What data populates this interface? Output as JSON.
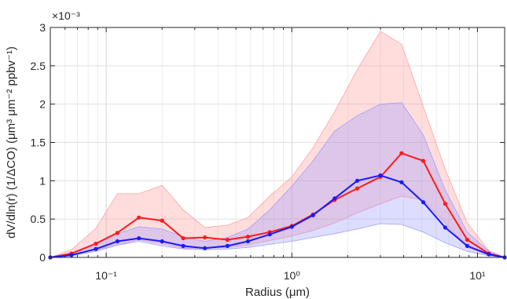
{
  "chart_data": {
    "type": "line",
    "xlabel": "Radius (μm)",
    "ylabel": "dV/dln(r) (1/ΔCO) (μm³ μm⁻² ppbv⁻¹)",
    "exponent_label": "×10⁻³",
    "x_scale": "log",
    "xlim": [
      0.05,
      14
    ],
    "ylim": [
      0,
      0.003
    ],
    "grid": true,
    "x_ticks": [
      {
        "value": 0.1,
        "label": "10⁻¹"
      },
      {
        "value": 1,
        "label": "10⁰"
      },
      {
        "value": 10,
        "label": "10¹"
      }
    ],
    "y_ticks": [
      {
        "value": 0,
        "label": "0"
      },
      {
        "value": 0.0005,
        "label": "0.5"
      },
      {
        "value": 0.001,
        "label": "1"
      },
      {
        "value": 0.0015,
        "label": "1.5"
      },
      {
        "value": 0.002,
        "label": "2"
      },
      {
        "value": 0.0025,
        "label": "2.5"
      },
      {
        "value": 0.003,
        "label": "3"
      }
    ],
    "x": [
      0.05,
      0.065,
      0.088,
      0.115,
      0.15,
      0.2,
      0.26,
      0.34,
      0.45,
      0.58,
      0.76,
      1.0,
      1.3,
      1.7,
      2.25,
      3.0,
      3.9,
      5.1,
      6.7,
      8.8,
      11.5,
      14.0
    ],
    "series": [
      {
        "color": "#ff1a1a",
        "band_color": "#ff9999",
        "values": [
          0.0,
          5e-05,
          0.00018,
          0.00032,
          0.00052,
          0.00048,
          0.00025,
          0.00026,
          0.00023,
          0.00027,
          0.00033,
          0.00041,
          0.00056,
          0.00075,
          0.0009,
          0.00105,
          0.00136,
          0.00126,
          0.0007,
          0.00023,
          5e-05,
          0.0
        ],
        "lower": [
          0.0,
          3e-05,
          0.0001,
          0.00016,
          0.00023,
          0.00018,
          0.00012,
          0.00012,
          0.00013,
          0.00016,
          0.00022,
          0.00028,
          0.00035,
          0.00045,
          0.00058,
          0.0007,
          0.0008,
          0.00075,
          0.00045,
          0.00013,
          3e-05,
          0.0
        ],
        "upper": [
          0.0,
          0.0001,
          0.00038,
          0.00083,
          0.00083,
          0.00094,
          0.00062,
          0.00039,
          0.00042,
          0.00052,
          0.0008,
          0.00105,
          0.00143,
          0.0019,
          0.00245,
          0.00295,
          0.00278,
          0.00197,
          0.00115,
          0.00045,
          9e-05,
          0.0
        ]
      },
      {
        "color": "#1a1aff",
        "band_color": "#9999ff",
        "values": [
          0.0,
          3e-05,
          0.00011,
          0.00021,
          0.00025,
          0.00021,
          0.00015,
          0.00012,
          0.00015,
          0.00021,
          0.0003,
          0.0004,
          0.00055,
          0.00077,
          0.001,
          0.00107,
          0.00098,
          0.00072,
          0.00039,
          0.00015,
          4e-05,
          0.0
        ],
        "lower": [
          0.0,
          2e-05,
          8e-05,
          0.00016,
          0.00021,
          0.00015,
          0.00011,
          0.0001,
          0.00011,
          0.00013,
          0.00017,
          0.00021,
          0.00026,
          0.00031,
          0.00037,
          0.00044,
          0.00043,
          0.00033,
          0.00019,
          8e-05,
          2e-05,
          0.0
        ],
        "upper": [
          0.0,
          6e-05,
          0.00018,
          0.00031,
          0.0004,
          0.00037,
          0.00027,
          0.00021,
          0.00026,
          0.00037,
          0.00062,
          0.00093,
          0.00126,
          0.00165,
          0.00185,
          0.002,
          0.00202,
          0.0016,
          0.00088,
          0.00033,
          8e-05,
          0.0
        ]
      }
    ]
  }
}
